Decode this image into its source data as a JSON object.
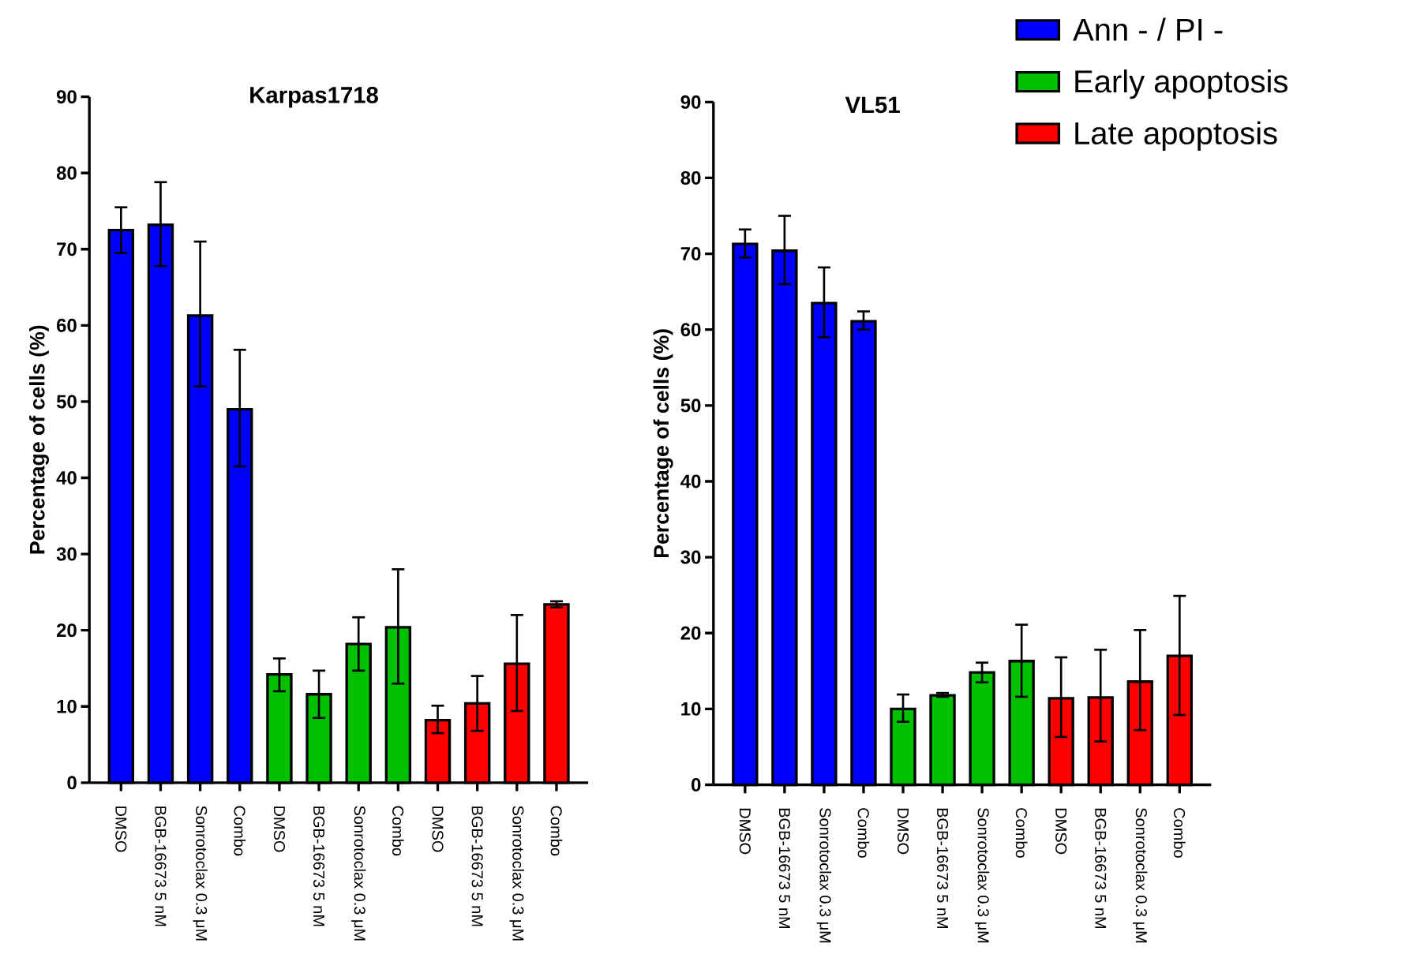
{
  "chart_data": [
    {
      "type": "bar",
      "title": "Karpas1718",
      "ylabel": "Percentage of cells (%)",
      "stacked": true,
      "categories": [
        "DMSO",
        "BGB-16673 5 nM",
        "Sonrotoclax 0.3 μM",
        "Combo",
        "DMSO",
        "BGB-16673 5 nM",
        "Sonrotoclax 0.3 μM",
        "Combo",
        "DMSO",
        "BGB-16673 5 nM",
        "Sonrotoclax 0.3 μM",
        "Combo"
      ],
      "ylim": [
        0,
        90
      ],
      "yticks": [
        0,
        10,
        20,
        30,
        40,
        50,
        60,
        70,
        80,
        90
      ],
      "series": [
        {
          "color": "#0000ff",
          "values": [
            72.5,
            73.2,
            61.3,
            49,
            null,
            null,
            null,
            null,
            null,
            null,
            null,
            null
          ],
          "errors": [
            [
              69.5,
              75.5
            ],
            [
              67.8,
              78.8
            ],
            [
              52,
              71
            ],
            [
              41.5,
              56.8
            ],
            null,
            null,
            null,
            null,
            null,
            null,
            null,
            null
          ]
        },
        {
          "color": "#00c000",
          "values": [
            null,
            null,
            null,
            null,
            14.2,
            11.6,
            18.2,
            20.4,
            null,
            null,
            null,
            null
          ],
          "errors": [
            null,
            null,
            null,
            null,
            [
              12,
              16.3
            ],
            [
              8.5,
              14.7
            ],
            [
              14.7,
              21.7
            ],
            [
              13,
              28
            ],
            null,
            null,
            null,
            null
          ]
        },
        {
          "color": "#ff0000",
          "values": [
            null,
            null,
            null,
            null,
            null,
            null,
            null,
            null,
            8.2,
            10.4,
            15.6,
            23.4
          ],
          "errors": [
            null,
            null,
            null,
            null,
            null,
            null,
            null,
            null,
            [
              6.5,
              10.1
            ],
            [
              6.8,
              14
            ],
            [
              9.4,
              22
            ],
            [
              23,
              23.8
            ]
          ]
        }
      ]
    },
    {
      "type": "bar",
      "title": "VL51",
      "ylabel": "Percentage of cells (%)",
      "legend": "top right",
      "stacked": true,
      "categories": [
        "DMSO",
        "BGB-16673 5 nM",
        "Sonrotoclax 0.3 μM",
        "Combo",
        "DMSO",
        "BGB-16673 5 nM",
        "Sonrotoclax 0.3 μM",
        "Combo",
        "DMSO",
        "BGB-16673 5 nM",
        "Sonrotoclax 0.3 μM",
        "Combo"
      ],
      "ylim": [
        0,
        90
      ],
      "yticks": [
        0,
        10,
        20,
        30,
        40,
        50,
        60,
        70,
        80,
        90
      ],
      "series": [
        {
          "name": "Ann - / PI -",
          "color": "#0000ff",
          "values": [
            71.3,
            70.4,
            63.5,
            61.1,
            null,
            null,
            null,
            null,
            null,
            null,
            null,
            null
          ],
          "errors": [
            [
              69.5,
              73.2
            ],
            [
              66,
              75
            ],
            [
              59,
              68.2
            ],
            [
              60,
              62.4
            ],
            null,
            null,
            null,
            null,
            null,
            null,
            null,
            null
          ]
        },
        {
          "name": "Early apoptosis",
          "color": "#00c000",
          "values": [
            null,
            null,
            null,
            null,
            10,
            11.8,
            14.8,
            16.3,
            null,
            null,
            null,
            null
          ],
          "errors": [
            null,
            null,
            null,
            null,
            [
              8.3,
              11.9
            ],
            [
              11.6,
              12.1
            ],
            [
              13.5,
              16.1
            ],
            [
              11.6,
              21.1
            ],
            null,
            null,
            null,
            null
          ]
        },
        {
          "name": "Late apoptosis",
          "color": "#ff0000",
          "values": [
            null,
            null,
            null,
            null,
            null,
            null,
            null,
            null,
            11.4,
            11.5,
            13.6,
            17
          ],
          "errors": [
            null,
            null,
            null,
            null,
            null,
            null,
            null,
            null,
            [
              6.3,
              16.8
            ],
            [
              5.7,
              17.8
            ],
            [
              7.2,
              20.4
            ],
            [
              9.2,
              24.9
            ]
          ]
        }
      ]
    }
  ]
}
